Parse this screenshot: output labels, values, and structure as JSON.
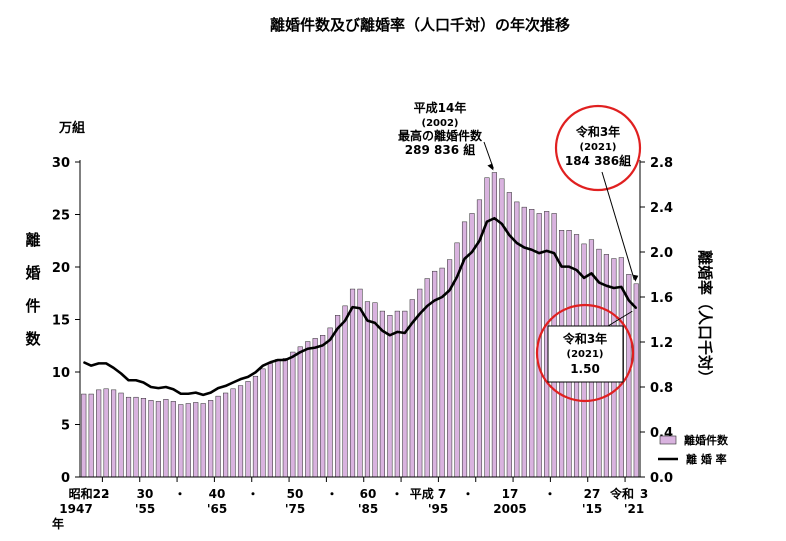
{
  "chart_data": {
    "type": "bar",
    "title": "離婚件数及び離婚率（人口千対）の年次推移",
    "left_axis": {
      "unit": "万組",
      "label": "離婚件数",
      "ylim": [
        0,
        30
      ],
      "ticks": [
        0,
        5,
        10,
        15,
        20,
        25,
        30
      ]
    },
    "right_axis": {
      "label": "離婚率（人口千対）",
      "ylim": [
        0.0,
        2.8
      ],
      "ticks": [
        "0.0",
        "0.4",
        "0.8",
        "1.2",
        "1.6",
        "2.0",
        "2.4",
        "2.8"
      ]
    },
    "x_labels_era": [
      "昭和22",
      "・",
      "30",
      "・",
      "40",
      "・",
      "50",
      "・",
      "60",
      "・",
      "平成 7",
      "・",
      "17",
      "・",
      "27",
      "令和",
      "3"
    ],
    "x_labels_year": [
      "1947",
      "'55",
      "'65",
      "'75",
      "'85",
      "'95",
      "2005",
      "'15",
      "'21"
    ],
    "x_year_marker": "年",
    "years": [
      1947,
      1948,
      1949,
      1950,
      1951,
      1952,
      1953,
      1954,
      1955,
      1956,
      1957,
      1958,
      1959,
      1960,
      1961,
      1962,
      1963,
      1964,
      1965,
      1966,
      1967,
      1968,
      1969,
      1970,
      1971,
      1972,
      1973,
      1974,
      1975,
      1976,
      1977,
      1978,
      1979,
      1980,
      1981,
      1982,
      1983,
      1984,
      1985,
      1986,
      1987,
      1988,
      1989,
      1990,
      1991,
      1992,
      1993,
      1994,
      1995,
      1996,
      1997,
      1998,
      1999,
      2000,
      2001,
      2002,
      2003,
      2004,
      2005,
      2006,
      2007,
      2008,
      2009,
      2010,
      2011,
      2012,
      2013,
      2014,
      2015,
      2016,
      2017,
      2018,
      2019,
      2020,
      2021
    ],
    "series": [
      {
        "name": "離婚件数",
        "type": "bar",
        "color": "#d9b3df",
        "values": [
          7.9,
          7.9,
          8.3,
          8.4,
          8.3,
          8.0,
          7.6,
          7.6,
          7.5,
          7.3,
          7.2,
          7.4,
          7.2,
          6.9,
          7.0,
          7.1,
          7.0,
          7.3,
          7.7,
          8.0,
          8.4,
          8.7,
          9.1,
          9.6,
          10.3,
          10.8,
          11.2,
          11.3,
          11.9,
          12.4,
          12.9,
          13.2,
          13.5,
          14.2,
          15.4,
          16.3,
          17.9,
          17.9,
          16.7,
          16.6,
          15.8,
          15.4,
          15.8,
          15.8,
          16.9,
          17.9,
          18.9,
          19.6,
          19.9,
          20.7,
          22.3,
          24.3,
          25.1,
          26.4,
          28.5,
          29.0,
          28.4,
          27.1,
          26.2,
          25.7,
          25.5,
          25.1,
          25.3,
          25.1,
          23.5,
          23.5,
          23.1,
          22.2,
          22.6,
          21.7,
          21.2,
          20.8,
          20.9,
          19.3,
          18.4
        ]
      },
      {
        "name": "離婚率",
        "type": "line",
        "color": "#000000",
        "values": [
          1.02,
          0.99,
          1.01,
          1.01,
          0.97,
          0.92,
          0.86,
          0.86,
          0.84,
          0.8,
          0.79,
          0.8,
          0.78,
          0.74,
          0.74,
          0.75,
          0.73,
          0.75,
          0.79,
          0.81,
          0.84,
          0.87,
          0.89,
          0.93,
          0.99,
          1.02,
          1.04,
          1.04,
          1.07,
          1.11,
          1.14,
          1.15,
          1.17,
          1.22,
          1.32,
          1.39,
          1.51,
          1.5,
          1.39,
          1.37,
          1.3,
          1.26,
          1.29,
          1.28,
          1.37,
          1.45,
          1.52,
          1.57,
          1.6,
          1.66,
          1.78,
          1.94,
          2.0,
          2.1,
          2.27,
          2.3,
          2.25,
          2.15,
          2.08,
          2.04,
          2.02,
          1.99,
          2.01,
          1.99,
          1.87,
          1.87,
          1.84,
          1.77,
          1.81,
          1.73,
          1.7,
          1.68,
          1.69,
          1.57,
          1.5
        ]
      }
    ],
    "legend": {
      "placement": "bottom-right",
      "entries": [
        "離婚件数",
        "離 婚 率"
      ]
    },
    "annotations": [
      {
        "id": "peak",
        "year": 2002,
        "lines": [
          "平成14年",
          "(2002)",
          "最高の離婚件数",
          "289 836 組"
        ]
      },
      {
        "id": "latest-count",
        "year": 2021,
        "lines": [
          "令和3年",
          "(2021)",
          "184 386組"
        ],
        "circled": true
      },
      {
        "id": "latest-rate",
        "year": 2021,
        "lines": [
          "令和3年",
          "(2021)",
          "1.50"
        ],
        "circled": true
      }
    ],
    "highlight_color": "#e02020"
  }
}
